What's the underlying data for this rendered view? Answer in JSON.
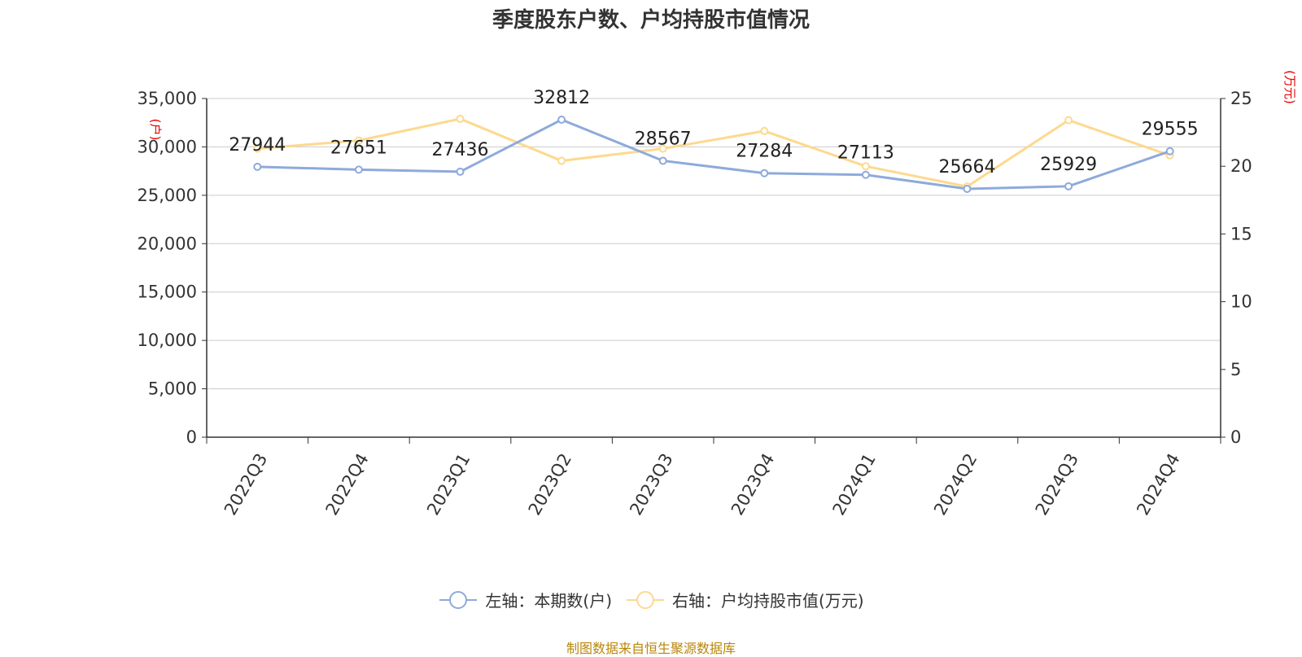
{
  "title": "季度股东户数、户均持股市值情况",
  "source": "制图数据来自恒生聚源数据库",
  "colors": {
    "left_series": "#8eaadb",
    "right_series": "#fdd98f",
    "unit_label": "#e60000",
    "source_text": "#b8860b",
    "grid": "#cccccc",
    "axis": "#333333"
  },
  "chart_data": {
    "type": "line",
    "categories": [
      "2022Q3",
      "2022Q4",
      "2023Q1",
      "2023Q2",
      "2023Q3",
      "2023Q4",
      "2024Q1",
      "2024Q2",
      "2024Q3",
      "2024Q4"
    ],
    "series": [
      {
        "name": "左轴：本期数(户)",
        "axis": "left",
        "values": [
          27944,
          27651,
          27436,
          32812,
          28567,
          27284,
          27113,
          25664,
          25929,
          29555
        ],
        "data_labels": [
          "27944",
          "27651",
          "27436",
          "32812",
          "28567",
          "27284",
          "27113",
          "25664",
          "25929",
          "29555"
        ]
      },
      {
        "name": "右轴：户均持股市值(万元)",
        "axis": "right",
        "values": [
          21.3,
          21.9,
          23.5,
          20.4,
          21.3,
          22.6,
          20.0,
          18.5,
          23.4,
          20.8
        ]
      }
    ],
    "y_left": {
      "unit": "(户)",
      "ylim": [
        0,
        35000
      ],
      "ticks": [
        0,
        5000,
        10000,
        15000,
        20000,
        25000,
        30000,
        35000
      ],
      "tick_labels": [
        "0",
        "5,000",
        "10,000",
        "15,000",
        "20,000",
        "25,000",
        "30,000",
        "35,000"
      ]
    },
    "y_right": {
      "unit": "(万元)",
      "ylim": [
        0,
        25
      ],
      "ticks": [
        0,
        5,
        10,
        15,
        20,
        25
      ],
      "tick_labels": [
        "0",
        "5",
        "10",
        "15",
        "20",
        "25"
      ]
    },
    "grid": true,
    "legend_position": "bottom"
  }
}
